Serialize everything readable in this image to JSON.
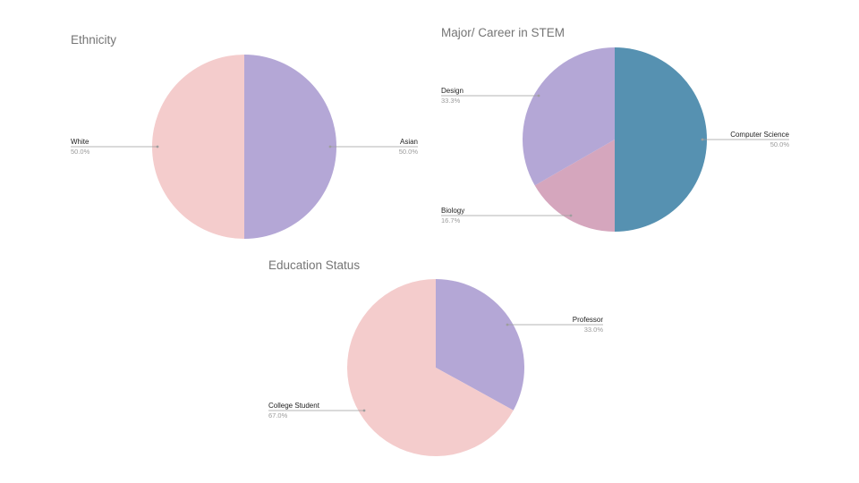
{
  "colors": {
    "pink": "#f4cccc",
    "lavender": "#b4a7d6",
    "teal": "#5691b1",
    "mauve": "#d5a6bd"
  },
  "chart_data": [
    {
      "type": "pie",
      "title": "Ethnicity",
      "series": [
        {
          "label": "Asian",
          "value": 50.0,
          "value_label": "50.0%",
          "color": "#b4a7d6"
        },
        {
          "label": "White",
          "value": 50.0,
          "value_label": "50.0%",
          "color": "#f4cccc"
        }
      ]
    },
    {
      "type": "pie",
      "title": "Major/ Career in STEM",
      "series": [
        {
          "label": "Computer Science",
          "value": 50.0,
          "value_label": "50.0%",
          "color": "#5691b1"
        },
        {
          "label": "Biology",
          "value": 16.7,
          "value_label": "16.7%",
          "color": "#d5a6bd"
        },
        {
          "label": "Design",
          "value": 33.3,
          "value_label": "33.3%",
          "color": "#b4a7d6"
        }
      ]
    },
    {
      "type": "pie",
      "title": "Education Status",
      "series": [
        {
          "label": "Professor",
          "value": 33.0,
          "value_label": "33.0%",
          "color": "#b4a7d6"
        },
        {
          "label": "College Student",
          "value": 67.0,
          "value_label": "67.0%",
          "color": "#f4cccc"
        }
      ]
    }
  ]
}
